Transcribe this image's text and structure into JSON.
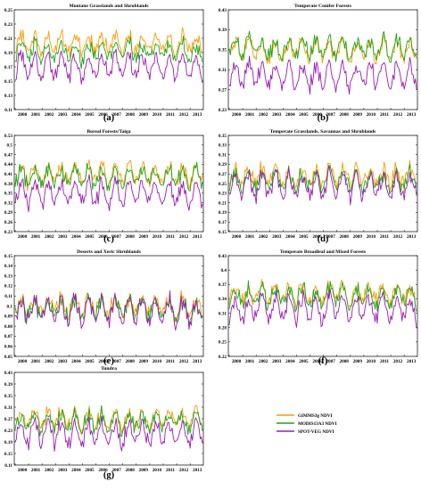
{
  "colors": {
    "gimms": "#ff9a00",
    "modis": "#19a619",
    "spot": "#9b1bb5",
    "frame": "#000000",
    "background": "#ffffff"
  },
  "legend": [
    {
      "key": "gimms",
      "label": "GIMMS3g NDVI"
    },
    {
      "key": "modis",
      "label": "MODIS13A3 NDVI"
    },
    {
      "key": "spot",
      "label": "SPOT-VEG NDVI"
    }
  ],
  "chart_data": [
    {
      "type": "line",
      "letter": "(a)",
      "title": "Montane Grasslands and Shrublands",
      "x": [
        "2000",
        "2001",
        "2002",
        "2003",
        "2004",
        "2005",
        "2006",
        "2007",
        "2008",
        "2009",
        "2010",
        "2011",
        "2012",
        "2013"
      ],
      "ylim": [
        0.11,
        0.25
      ],
      "yticks": [
        0.11,
        0.13,
        0.15,
        0.17,
        0.19,
        0.21,
        0.23,
        0.25
      ],
      "approx_means": {
        "gimms": 0.202,
        "modis": 0.192,
        "spot": 0.17
      },
      "series": [
        {
          "name": "GIMMS3g NDVI"
        },
        {
          "name": "MODIS13A3 NDVI"
        },
        {
          "name": "SPOT-VEG NDVI"
        }
      ]
    },
    {
      "type": "line",
      "letter": "(b)",
      "title": "Temperate Conifer Forests",
      "x": [
        "2000",
        "2001",
        "2002",
        "2003",
        "2004",
        "2005",
        "2006",
        "2007",
        "2008",
        "2009",
        "2010",
        "2011",
        "2012",
        "2013"
      ],
      "ylim": [
        0.23,
        0.43
      ],
      "yticks": [
        0.23,
        0.27,
        0.31,
        0.35,
        0.39,
        0.43
      ],
      "approx_means": {
        "gimms": 0.35,
        "modis": 0.355,
        "spot": 0.3
      },
      "series": [
        {
          "name": "GIMMS3g NDVI"
        },
        {
          "name": "MODIS13A3 NDVI"
        },
        {
          "name": "SPOT-VEG NDVI"
        }
      ]
    },
    {
      "type": "line",
      "letter": "(c)",
      "title": "Boreal Forests/Taiga",
      "x": [
        "2000",
        "2001",
        "2002",
        "2003",
        "2004",
        "2005",
        "2006",
        "2007",
        "2008",
        "2009",
        "2010",
        "2011",
        "2012",
        "2013"
      ],
      "ylim": [
        0.23,
        0.53
      ],
      "yticks": [
        0.23,
        0.26,
        0.29,
        0.32,
        0.35,
        0.38,
        0.41,
        0.44,
        0.47,
        0.5,
        0.53
      ],
      "approx_means": {
        "gimms": 0.41,
        "modis": 0.4,
        "spot": 0.35
      },
      "series": [
        {
          "name": "GIMMS3g NDVI"
        },
        {
          "name": "MODIS13A3 NDVI"
        },
        {
          "name": "SPOT-VEG NDVI"
        }
      ]
    },
    {
      "type": "line",
      "letter": "(d)",
      "title": "Temperate Grasslands, Savannas and Shrublands",
      "x": [
        "2000",
        "2001",
        "2002",
        "2003",
        "2004",
        "2005",
        "2006",
        "2007",
        "2008",
        "2009",
        "2010",
        "2011",
        "2012",
        "2013"
      ],
      "ylim": [
        0.15,
        0.35
      ],
      "yticks": [
        0.15,
        0.17,
        0.19,
        0.21,
        0.23,
        0.25,
        0.27,
        0.29,
        0.31,
        0.33,
        0.35
      ],
      "approx_means": {
        "gimms": 0.265,
        "modis": 0.255,
        "spot": 0.245
      },
      "series": [
        {
          "name": "GIMMS3g NDVI"
        },
        {
          "name": "MODIS13A3 NDVI"
        },
        {
          "name": "SPOT-VEG NDVI"
        }
      ]
    },
    {
      "type": "line",
      "letter": "(e)",
      "title": "Deserts and Xeric Shrublands",
      "x": [
        "2000",
        "2001",
        "2002",
        "2003",
        "2004",
        "2005",
        "2006",
        "2007",
        "2008",
        "2009",
        "2010",
        "2011",
        "2012",
        "2013"
      ],
      "ylim": [
        0.05,
        0.15
      ],
      "yticks": [
        0.05,
        0.06,
        0.07,
        0.08,
        0.09,
        0.1,
        0.11,
        0.12,
        0.13,
        0.14,
        0.15
      ],
      "approx_means": {
        "gimms": 0.1,
        "modis": 0.097,
        "spot": 0.095
      },
      "series": [
        {
          "name": "GIMMS3g NDVI"
        },
        {
          "name": "MODIS13A3 NDVI"
        },
        {
          "name": "SPOT-VEG NDVI"
        }
      ]
    },
    {
      "type": "line",
      "letter": "(f)",
      "title": "Temperate Broadleaf and Mixed Forests",
      "x": [
        "2000",
        "2001",
        "2002",
        "2003",
        "2004",
        "2005",
        "2006",
        "2007",
        "2008",
        "2009",
        "2010",
        "2011",
        "2012",
        "2013"
      ],
      "ylim": [
        0.22,
        0.43
      ],
      "yticks": [
        0.22,
        0.25,
        0.28,
        0.31,
        0.34,
        0.37,
        0.4,
        0.43
      ],
      "approx_means": {
        "gimms": 0.35,
        "modis": 0.345,
        "spot": 0.32
      },
      "series": [
        {
          "name": "GIMMS3g NDVI"
        },
        {
          "name": "MODIS13A3 NDVI"
        },
        {
          "name": "SPOT-VEG NDVI"
        }
      ]
    },
    {
      "type": "line",
      "letter": "(g)",
      "title": "Tundra",
      "x": [
        "2000",
        "2001",
        "2002",
        "2003",
        "2004",
        "2005",
        "2006",
        "2007",
        "2008",
        "2009",
        "2010",
        "2011",
        "2012",
        "2013"
      ],
      "ylim": [
        0.11,
        0.43
      ],
      "yticks": [
        0.11,
        0.15,
        0.19,
        0.23,
        0.27,
        0.31,
        0.35,
        0.39,
        0.43
      ],
      "approx_means": {
        "gimms": 0.27,
        "modis": 0.26,
        "spot": 0.22
      },
      "series": [
        {
          "name": "GIMMS3g NDVI"
        },
        {
          "name": "MODIS13A3 NDVI"
        },
        {
          "name": "SPOT-VEG NDVI"
        }
      ]
    }
  ]
}
